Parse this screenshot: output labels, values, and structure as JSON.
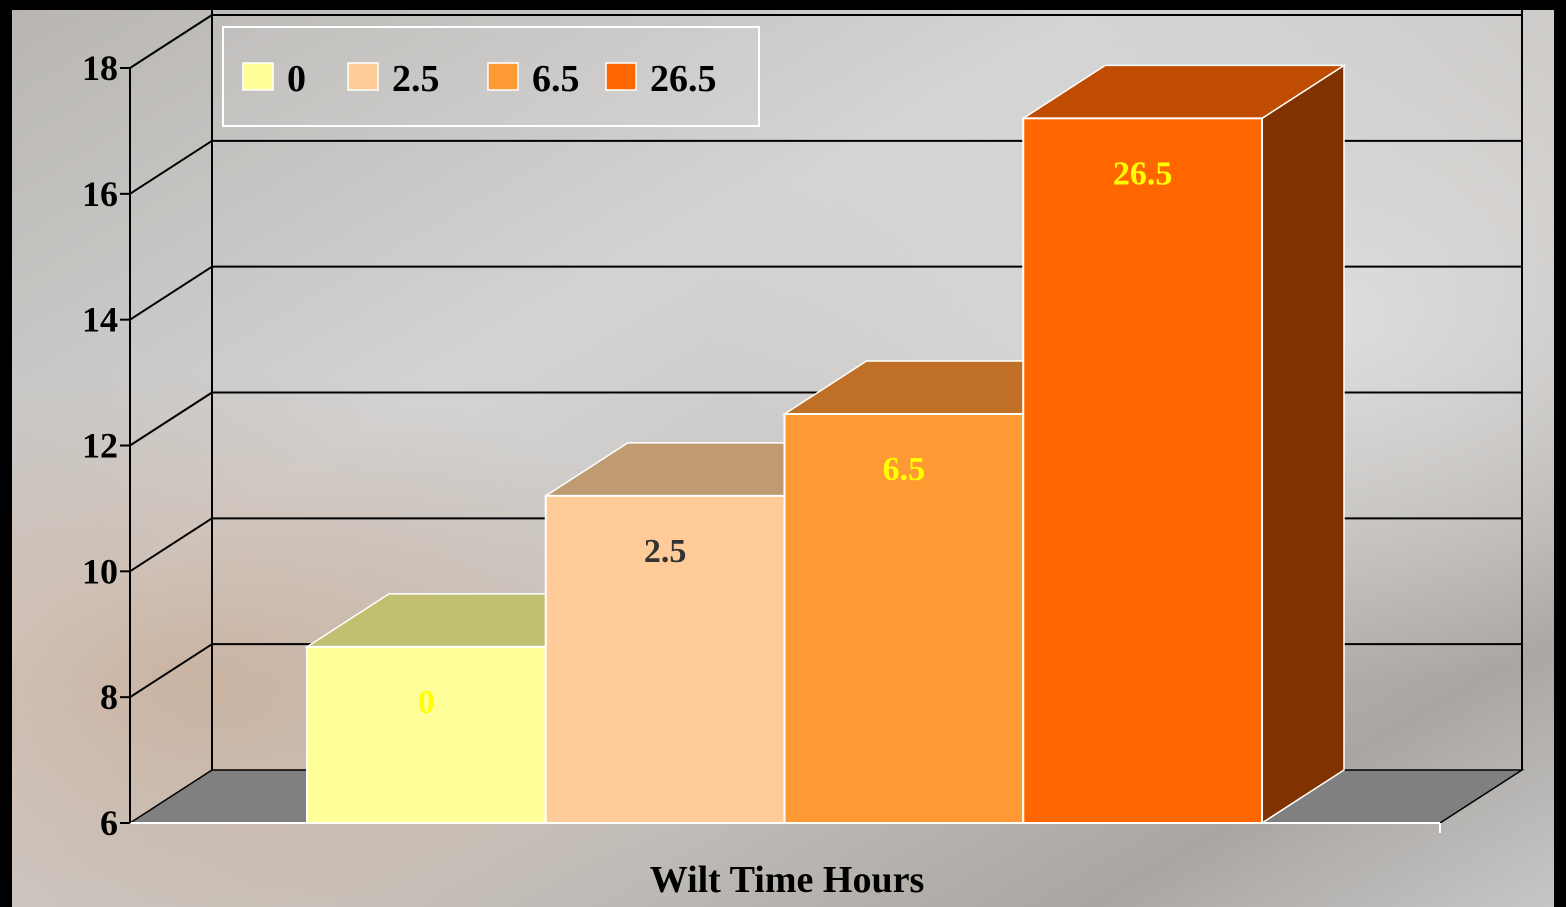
{
  "chart_data": {
    "type": "bar",
    "title": "",
    "xlabel": "Wilt Time Hours",
    "ylabel": "",
    "ylim": [
      6,
      18
    ],
    "yticks": [
      6,
      8,
      10,
      12,
      14,
      16,
      18
    ],
    "grid": true,
    "legend_position": "top-left",
    "style": "3d",
    "categories": [
      "0",
      "2.5",
      "6.5",
      "26.5"
    ],
    "series": [
      {
        "name": "0",
        "value": 8.8,
        "label": "0",
        "color": "#ffff99",
        "top_color": "#c0c070",
        "label_color": "#ffff00"
      },
      {
        "name": "2.5",
        "value": 11.2,
        "label": "2.5",
        "color": "#ffcc99",
        "top_color": "#c09a70",
        "label_color": "#333333"
      },
      {
        "name": "6.5",
        "value": 12.5,
        "label": "6.5",
        "color": "#ff9933",
        "top_color": "#bf7026",
        "label_color": "#ffff00"
      },
      {
        "name": "26.5",
        "value": 17.2,
        "label": "26.5",
        "color": "#ff6600",
        "top_color": "#bf4c00",
        "side_color": "#803300",
        "label_color": "#ffff00"
      }
    ]
  }
}
